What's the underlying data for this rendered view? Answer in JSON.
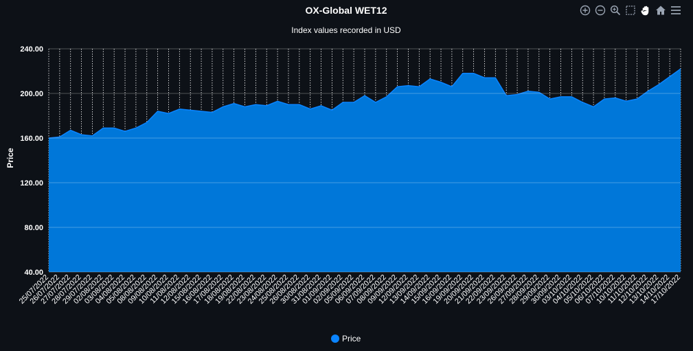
{
  "chart_data": {
    "type": "area",
    "title": "OX-Global WET12",
    "subtitle": "Index values recorded in USD",
    "ylabel": "Price",
    "xlabel": "",
    "ylim": [
      40,
      240
    ],
    "yticks": [
      "40.00",
      "80.00",
      "120.00",
      "160.00",
      "200.00",
      "240.00"
    ],
    "grid": true,
    "legend_position": "bottom-center",
    "colors": {
      "area": "#0a84ff",
      "area_fill": "#0077d9",
      "background": "#0d1117",
      "grid": "#ffffff"
    },
    "x": [
      "25/07/2022",
      "26/07/2022",
      "27/07/2022",
      "28/07/2022",
      "29/07/2022",
      "02/08/2022",
      "03/08/2022",
      "04/08/2022",
      "05/08/2022",
      "08/08/2022",
      "09/08/2022",
      "10/08/2022",
      "11/08/2022",
      "12/08/2022",
      "15/08/2022",
      "16/08/2022",
      "17/08/2022",
      "18/08/2022",
      "19/08/2022",
      "22/08/2022",
      "23/08/2022",
      "24/08/2022",
      "25/08/2022",
      "26/08/2022",
      "30/08/2022",
      "31/08/2022",
      "01/09/2022",
      "02/09/2022",
      "05/09/2022",
      "06/09/2022",
      "07/09/2022",
      "08/09/2022",
      "09/09/2022",
      "12/09/2022",
      "13/09/2022",
      "14/09/2022",
      "15/09/2022",
      "16/09/2022",
      "19/09/2022",
      "20/09/2022",
      "21/09/2022",
      "22/09/2022",
      "23/09/2022",
      "26/09/2022",
      "27/09/2022",
      "28/09/2022",
      "29/09/2022",
      "30/09/2022",
      "03/10/2022",
      "04/10/2022",
      "05/10/2022",
      "06/10/2022",
      "07/10/2022",
      "10/10/2022",
      "11/10/2022",
      "12/10/2022",
      "13/10/2022",
      "14/10/2022",
      "17/10/2022"
    ],
    "series": [
      {
        "name": "Price",
        "values": [
          160,
          161,
          167,
          163,
          162,
          169,
          169,
          166,
          169,
          174,
          184,
          182,
          186,
          185,
          184,
          183,
          188,
          191,
          188,
          190,
          189,
          193,
          190,
          190,
          186,
          189,
          185,
          192,
          192,
          198,
          192,
          197,
          206,
          207,
          206,
          213,
          210,
          206,
          218,
          218,
          214,
          214,
          198,
          199,
          202,
          201,
          195,
          197,
          197,
          192,
          188,
          195,
          196,
          193,
          195,
          202,
          208,
          215,
          222
        ]
      }
    ]
  },
  "toolbar": {
    "icons": [
      "zoom-in-icon",
      "zoom-out-icon",
      "magnifier-icon",
      "selection-icon",
      "pan-hand-icon",
      "home-icon",
      "menu-icon"
    ]
  }
}
